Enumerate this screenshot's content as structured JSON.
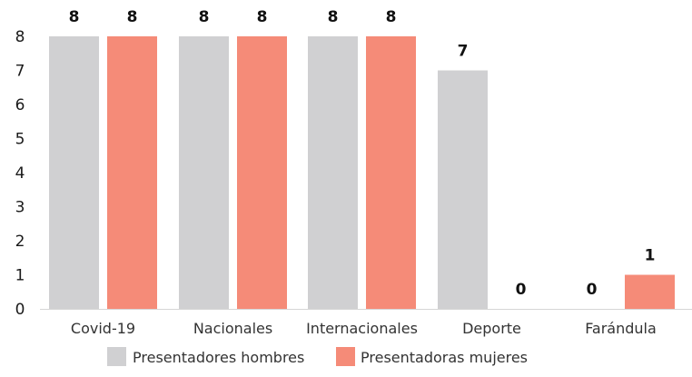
{
  "chart_data": {
    "type": "bar",
    "categories": [
      "Covid-19",
      "Nacionales",
      "Internacionales",
      "Deporte",
      "Farándula"
    ],
    "series": [
      {
        "name": "Presentadores hombres",
        "color": "#d0d0d2",
        "values": [
          8,
          8,
          8,
          7,
          0
        ]
      },
      {
        "name": "Presentadoras mujeres",
        "color": "#f58b78",
        "values": [
          8,
          8,
          8,
          0,
          1
        ]
      }
    ],
    "y_ticks": [
      "0",
      "1",
      "2",
      "3",
      "4",
      "5",
      "6",
      "7",
      "8"
    ],
    "ylim": [
      0,
      8
    ],
    "grid": false,
    "legend_position": "bottom"
  }
}
